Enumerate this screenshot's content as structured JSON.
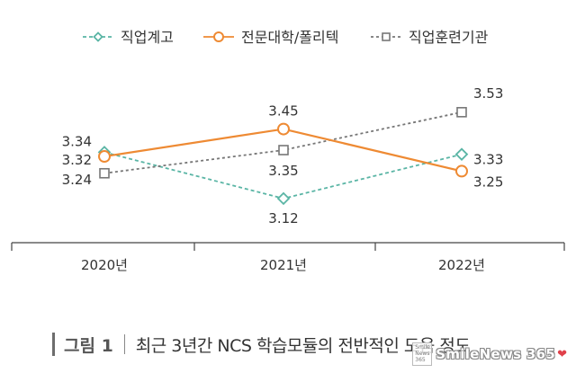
{
  "chart_data": {
    "type": "line",
    "categories": [
      "2020년",
      "2021년",
      "2022년"
    ],
    "series": [
      {
        "name": "직업계고",
        "values": [
          3.34,
          3.12,
          3.33
        ],
        "labels": [
          "3.34",
          "3.12",
          "3.33"
        ],
        "color": "#5ab5a5",
        "style": "dashed",
        "marker": "diamond"
      },
      {
        "name": "전문대학/폴리텍",
        "values": [
          3.32,
          3.45,
          3.25
        ],
        "labels": [
          "3.32",
          "3.45",
          "3.25"
        ],
        "color": "#ee8a33",
        "style": "solid",
        "marker": "circle"
      },
      {
        "name": "직업훈련기관",
        "values": [
          3.24,
          3.35,
          3.53
        ],
        "labels": [
          "3.24",
          "3.35",
          "3.53"
        ],
        "color": "#777777",
        "style": "dotted",
        "marker": "square"
      }
    ],
    "ylim": [
      3.0,
      3.7
    ],
    "grid": false,
    "legend": "top"
  },
  "caption": {
    "label": "그림 1",
    "title": "최근 3년간 NCS 학습모듈의 전반적인 도움 정도"
  },
  "watermark": {
    "badge": "Smile News 365",
    "text": "SmileNews 365"
  }
}
